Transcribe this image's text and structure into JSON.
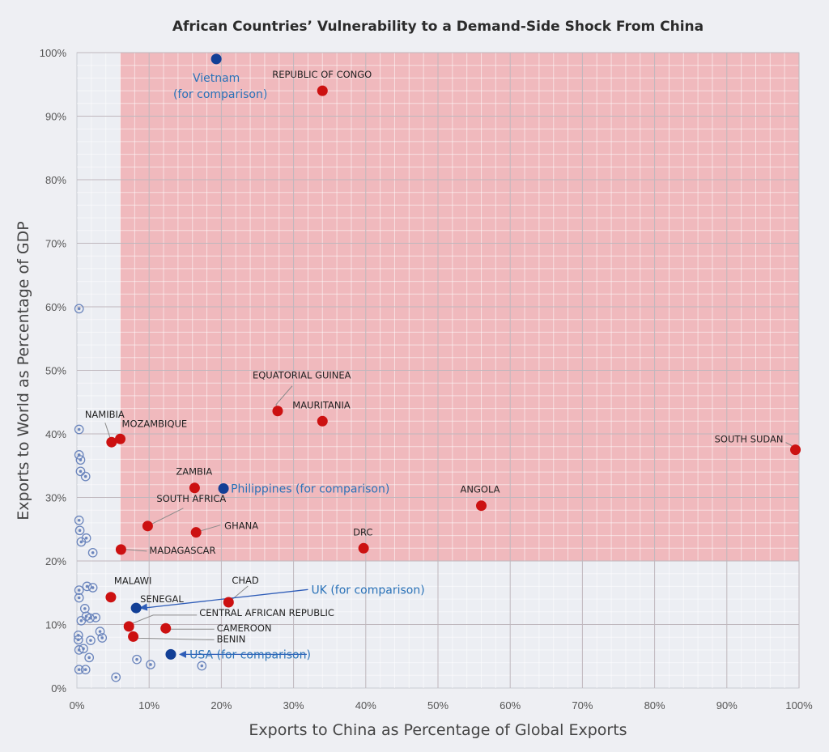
{
  "chart_data": {
    "type": "scatter",
    "title": "African Countries’ Vulnerability to a Demand-Side Shock From China",
    "xlabel": "Exports to China as Percentage of Global Exports",
    "ylabel": "Exports to World as Percentage of GDP",
    "xlim": [
      0,
      100
    ],
    "ylim": [
      0,
      100
    ],
    "x_ticks": [
      "0%",
      "10%",
      "20%",
      "30%",
      "40%",
      "50%",
      "60%",
      "70%",
      "80%",
      "90%",
      "100%"
    ],
    "y_ticks": [
      "0%",
      "10%",
      "20%",
      "30%",
      "40%",
      "50%",
      "60%",
      "70%",
      "80%",
      "90%",
      "100%"
    ],
    "grid": true,
    "highlight_region": {
      "x_min": 6,
      "x_max": 100,
      "y_min": 20,
      "y_max": 100,
      "color": "#f0b9bd"
    },
    "colors": {
      "vulnerable": "#cc1111",
      "comparison": "#123f96",
      "other": "#6c86bd",
      "comparison_text": "#2a72b8"
    },
    "vulnerable": [
      {
        "label": "REPUBLIC OF CONGO",
        "x": 34,
        "y": 94
      },
      {
        "label": "EQUATORIAL GUINEA",
        "x": 27.8,
        "y": 43.6
      },
      {
        "label": "MAURITANIA",
        "x": 34,
        "y": 42
      },
      {
        "label": "NAMIBIA",
        "x": 4.8,
        "y": 38.7
      },
      {
        "label": "MOZAMBIQUE",
        "x": 6,
        "y": 39.2
      },
      {
        "label": "SOUTH SUDAN",
        "x": 99.5,
        "y": 37.5
      },
      {
        "label": "ZAMBIA",
        "x": 16.3,
        "y": 31.5
      },
      {
        "label": "SOUTH AFRICA",
        "x": 9.8,
        "y": 25.5
      },
      {
        "label": "GHANA",
        "x": 16.5,
        "y": 24.5
      },
      {
        "label": "ANGOLA",
        "x": 56,
        "y": 28.7
      },
      {
        "label": "MADAGASCAR",
        "x": 6.1,
        "y": 21.8
      },
      {
        "label": "DRC",
        "x": 39.7,
        "y": 22
      },
      {
        "label": "MALAWI",
        "x": 4.7,
        "y": 14.3
      },
      {
        "label": "CHAD",
        "x": 21,
        "y": 13.5
      },
      {
        "label": "CENTRAL AFRICAN REPUBLIC",
        "x": 7.2,
        "y": 9.7
      },
      {
        "label": "CAMEROON",
        "x": 12.3,
        "y": 9.4
      },
      {
        "label": "BENIN",
        "x": 7.8,
        "y": 8.1
      }
    ],
    "comparison": [
      {
        "label_lines": [
          "Vietnam",
          "(for comparison)"
        ],
        "x": 19.3,
        "y": 99
      },
      {
        "label_lines": [
          "Philippines (for comparison)"
        ],
        "x": 20.3,
        "y": 31.4
      },
      {
        "label_lines": [
          "SENEGAL"
        ],
        "x": 8.2,
        "y": 12.6
      },
      {
        "label_lines": [
          "USA (for comparison)"
        ],
        "x": 13,
        "y": 5.3
      }
    ],
    "comparison_arrow": {
      "label": "UK (for comparison)",
      "from": [
        32,
        15.5
      ],
      "to": [
        8.5,
        12.6
      ]
    },
    "other_countries": [
      [
        0.3,
        59.7
      ],
      [
        0.3,
        40.7
      ],
      [
        0.3,
        36.7
      ],
      [
        0.5,
        35.9
      ],
      [
        0.5,
        34.1
      ],
      [
        1.2,
        33.3
      ],
      [
        0.3,
        26.4
      ],
      [
        0.4,
        24.8
      ],
      [
        0.6,
        23.0
      ],
      [
        1.3,
        23.6
      ],
      [
        2.2,
        21.3
      ],
      [
        0.3,
        15.4
      ],
      [
        1.4,
        16.0
      ],
      [
        2.2,
        15.8
      ],
      [
        0.3,
        14.2
      ],
      [
        1.1,
        12.5
      ],
      [
        1.3,
        11.3
      ],
      [
        1.8,
        11.0
      ],
      [
        2.6,
        11.1
      ],
      [
        0.6,
        10.6
      ],
      [
        3.2,
        8.9
      ],
      [
        3.5,
        7.9
      ],
      [
        0.2,
        8.3
      ],
      [
        0.2,
        7.6
      ],
      [
        1.9,
        7.5
      ],
      [
        0.3,
        6.0
      ],
      [
        0.9,
        6.2
      ],
      [
        1.7,
        4.8
      ],
      [
        0.3,
        2.9
      ],
      [
        1.2,
        2.9
      ],
      [
        5.4,
        1.7
      ],
      [
        8.3,
        4.5
      ],
      [
        10.2,
        3.7
      ],
      [
        17.3,
        3.5
      ]
    ]
  }
}
